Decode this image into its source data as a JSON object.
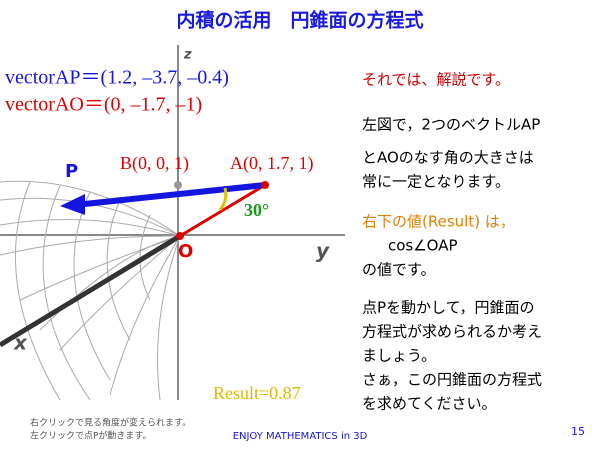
{
  "header": {
    "title": "内積の活用　円錐面の方程式"
  },
  "figure": {
    "vector_ap": "vectorAP＝(1.2, –3.7, –0.4)",
    "vector_ao": "vectorAO＝(0, –1.7, –1)",
    "point_p": "P",
    "point_b": "B(0, 0, 1)",
    "point_a": "A(0, 1.7, 1)",
    "angle": "30°",
    "origin": "O",
    "axis_x": "x",
    "axis_y": "y",
    "axis_z": "z",
    "result": "Result=0.87"
  },
  "explanation": {
    "lines": [
      "それでは、解説です。",
      "左図で，2つのベクトルAP",
      "とAOのなす角の大きさは",
      "常に一定となります。"
    ],
    "result_note": "右下の値(Result) は，",
    "formula": "cos∠OAP",
    "formula_after": "の値です。",
    "task": [
      "点Pを動かして，円錐面の",
      "方程式が求められるか考え",
      "ましょう。",
      "さぁ，この円錐面の方程式",
      "を求めてください。"
    ]
  },
  "footer": {
    "help": [
      "右クリックで見る角度が変えられます。",
      "左クリックで点Pが動きます。"
    ],
    "brand": "ENJOY MATHEMATICS in 3D",
    "page": "15"
  }
}
